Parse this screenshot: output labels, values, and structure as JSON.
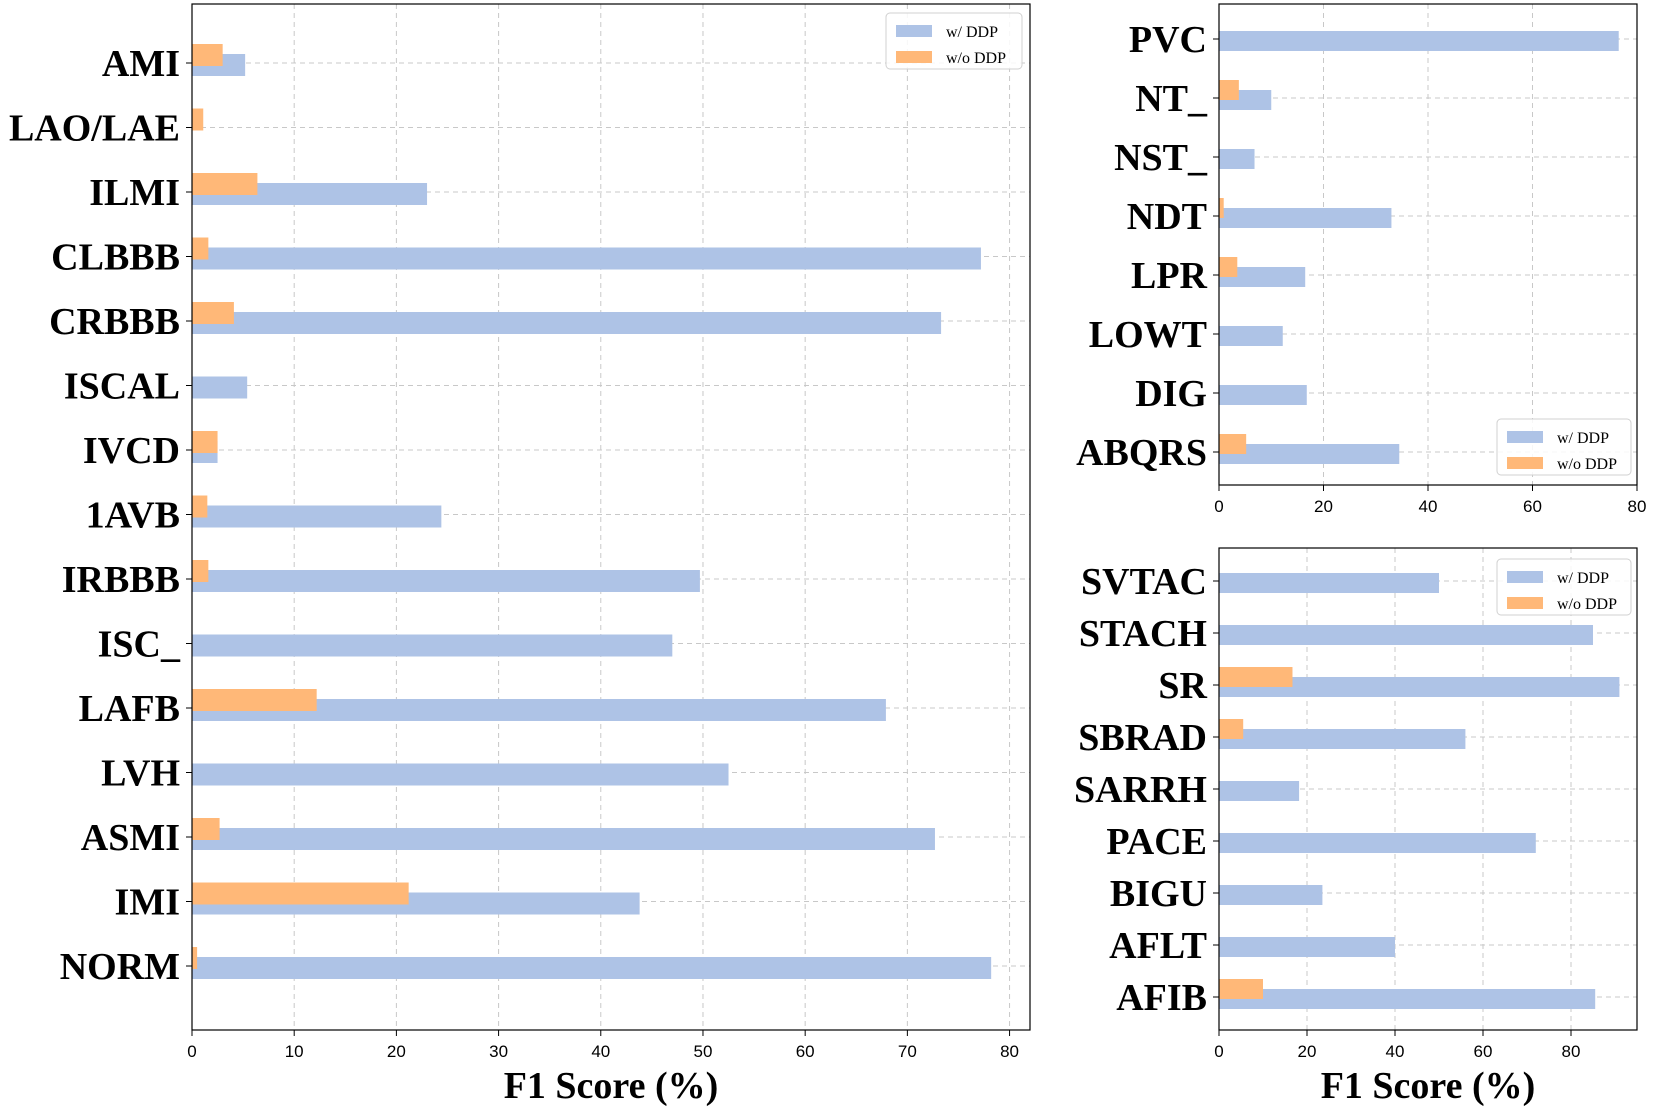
{
  "colors": {
    "with_ddp": "#aec3e6",
    "without_ddp": "#ffb878"
  },
  "chart_data": [
    {
      "type": "bar",
      "orientation": "horizontal",
      "categories": [
        "AMI",
        "LAO/LAE",
        "ILMI",
        "CLBBB",
        "CRBBB",
        "ISCAL",
        "IVCD",
        "1AVB",
        "IRBBB",
        "ISC_",
        "LAFB",
        "LVH",
        "ASMI",
        "IMI",
        "NORM"
      ],
      "series": [
        {
          "name": "w/ DDP",
          "values": [
            5.2,
            0,
            23,
            77.2,
            73.3,
            5.4,
            2.5,
            24.4,
            49.7,
            47,
            67.9,
            52.5,
            72.7,
            43.8,
            78.2
          ]
        },
        {
          "name": "w/o DDP",
          "values": [
            3,
            1.1,
            6.4,
            1.6,
            4.1,
            0,
            2.5,
            1.5,
            1.6,
            0,
            12.2,
            0,
            2.7,
            21.2,
            0.5
          ]
        }
      ],
      "xlim": [
        0,
        82
      ],
      "xticks": [
        0,
        10,
        20,
        30,
        40,
        50,
        60,
        70,
        80
      ],
      "xlabel": "F1 Score (%)",
      "ylabel": "",
      "title": "",
      "legend": [
        "w/ DDP",
        "w/o DDP"
      ],
      "legend_position": "top-right",
      "grid": true
    },
    {
      "type": "bar",
      "orientation": "horizontal",
      "categories": [
        "PVC",
        "NT_",
        "NST_",
        "NDT",
        "LPR",
        "LOWT",
        "DIG",
        "ABQRS"
      ],
      "series": [
        {
          "name": "w/ DDP",
          "values": [
            76.5,
            10,
            6.8,
            33,
            16.5,
            12.2,
            16.8,
            34.5
          ]
        },
        {
          "name": "w/o DDP",
          "values": [
            0,
            3.8,
            0,
            0.9,
            3.5,
            0,
            0,
            5.2
          ]
        }
      ],
      "xlim": [
        0,
        80
      ],
      "xticks": [
        0,
        20,
        40,
        60,
        80
      ],
      "xlabel": "",
      "ylabel": "",
      "title": "",
      "legend": [
        "w/ DDP",
        "w/o DDP"
      ],
      "legend_position": "bottom-right",
      "grid": true
    },
    {
      "type": "bar",
      "orientation": "horizontal",
      "categories": [
        "SVTAC",
        "STACH",
        "SR",
        "SBRAD",
        "SARRH",
        "PACE",
        "BIGU",
        "AFLT",
        "AFIB"
      ],
      "series": [
        {
          "name": "w/ DDP",
          "values": [
            50,
            85,
            91,
            56,
            18.2,
            72,
            23.5,
            40,
            85.5
          ]
        },
        {
          "name": "w/o DDP",
          "values": [
            0,
            0,
            16.7,
            5.5,
            0,
            0,
            0,
            0,
            10
          ]
        }
      ],
      "xlim": [
        0,
        95
      ],
      "xticks": [
        0,
        20,
        40,
        60,
        80
      ],
      "xlabel": "F1 Score (%)",
      "ylabel": "",
      "title": "",
      "legend": [
        "w/ DDP",
        "w/o DDP"
      ],
      "legend_position": "top-right",
      "grid": true
    }
  ]
}
